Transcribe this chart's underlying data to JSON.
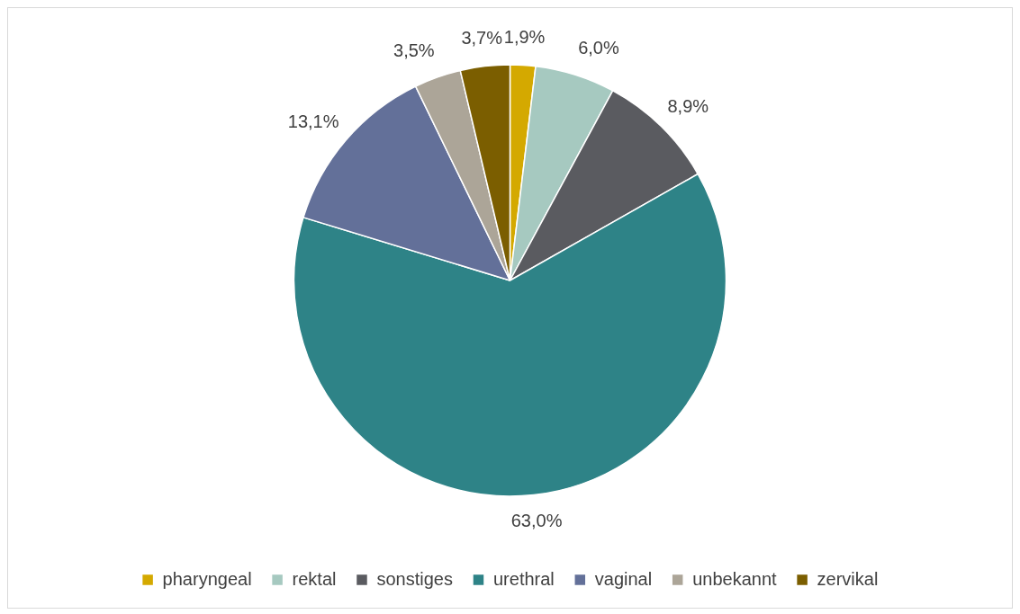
{
  "chart_data": {
    "type": "pie",
    "categories": [
      "pharyngeal",
      "rektal",
      "sonstiges",
      "urethral",
      "vaginal",
      "unbekannt",
      "zervikal"
    ],
    "values": [
      1.9,
      6.0,
      8.9,
      63.0,
      13.1,
      3.5,
      3.7
    ],
    "value_labels": [
      "1,9%",
      "6,0%",
      "8,9%",
      "63,0%",
      "13,1%",
      "3,5%",
      "3,7%"
    ],
    "colors": [
      "#d4a900",
      "#a6c9c0",
      "#5a5b60",
      "#2e8387",
      "#637099",
      "#aca598",
      "#7b5e00"
    ],
    "legend": "bottom"
  }
}
